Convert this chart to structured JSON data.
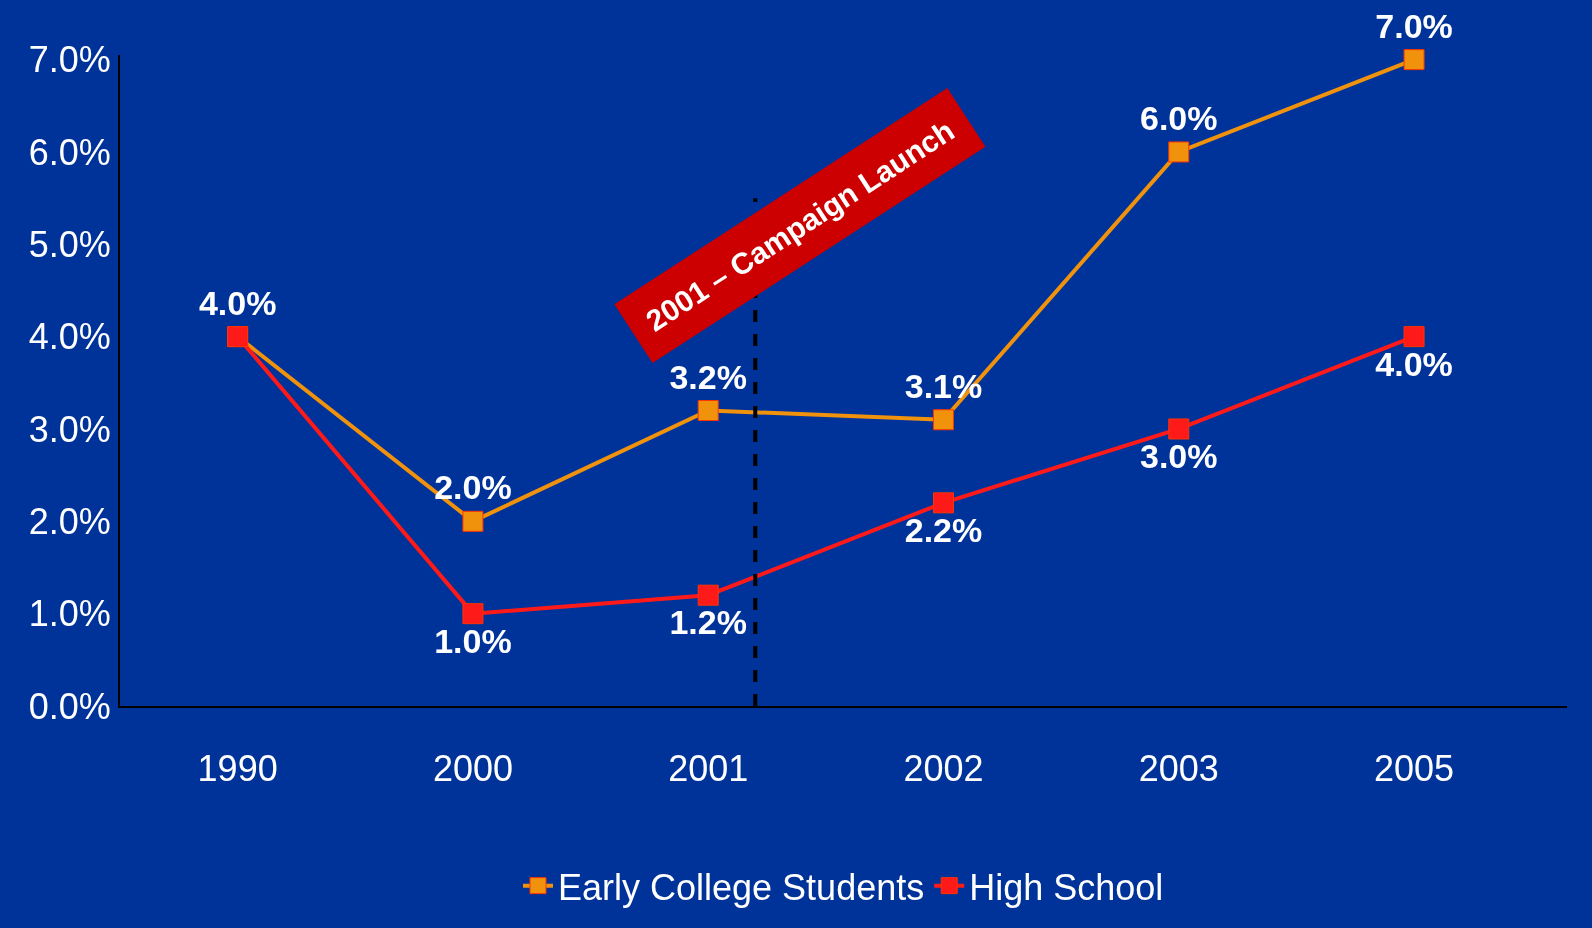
{
  "chart_data": {
    "type": "line",
    "categories": [
      "1990",
      "2000",
      "2001",
      "2002",
      "2003",
      "2005"
    ],
    "series": [
      {
        "name": "Early College Students",
        "color": "#f0920c",
        "values": [
          4.0,
          2.0,
          3.2,
          3.1,
          6.0,
          7.0
        ],
        "value_labels": [
          "4.0%",
          "2.0%",
          "3.2%",
          "3.1%",
          "6.0%",
          "7.0%"
        ]
      },
      {
        "name": "High School",
        "color": "#ff1a1a",
        "values": [
          4.0,
          1.0,
          1.2,
          2.2,
          3.0,
          4.0
        ],
        "value_labels": [
          null,
          "1.0%",
          "1.2%",
          "2.2%",
          "3.0%",
          "4.0%"
        ]
      }
    ],
    "ylim": [
      0,
      7.05
    ],
    "yticks": [
      {
        "value": 0,
        "label": "0.0%"
      },
      {
        "value": 1,
        "label": "1.0%"
      },
      {
        "value": 2,
        "label": "2.0%"
      },
      {
        "value": 3,
        "label": "3.0%"
      },
      {
        "value": 4,
        "label": "4.0%"
      },
      {
        "value": 5,
        "label": "5.0%"
      },
      {
        "value": 6,
        "label": "6.0%"
      },
      {
        "value": 7,
        "label": "7.0%"
      }
    ],
    "ref_lines": [
      {
        "axis": "x",
        "value": "2001",
        "color": "#000000",
        "line_style": "dashed"
      }
    ],
    "annotations": [
      "2001 – Campaign Launch"
    ],
    "grid": false,
    "legend": "bottom",
    "marker": "square",
    "line_style": "solid"
  }
}
